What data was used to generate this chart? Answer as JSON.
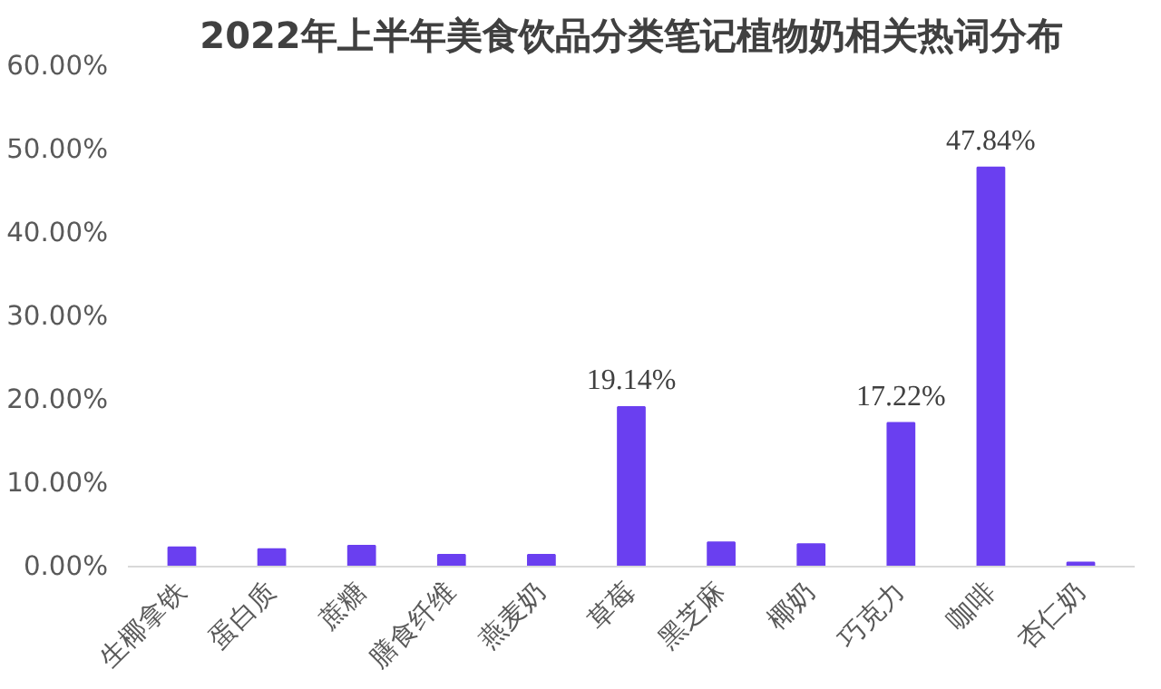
{
  "chart_data": {
    "type": "bar",
    "title": "2022年上半年美食饮品分类笔记植物奶相关热词分布",
    "categories": [
      "生椰拿铁",
      "蛋白质",
      "蔗糖",
      "膳食纤维",
      "燕麦奶",
      "草莓",
      "黑芝麻",
      "椰奶",
      "巧克力",
      "咖啡",
      "杏仁奶"
    ],
    "values": [
      2.3,
      2.1,
      2.5,
      1.4,
      1.4,
      19.14,
      2.9,
      2.7,
      17.22,
      47.84,
      0.5
    ],
    "value_labels": [
      null,
      null,
      null,
      null,
      null,
      "19.14%",
      null,
      null,
      "17.22%",
      "47.84%",
      null
    ],
    "color": "#6a3ff0",
    "ylim": [
      0,
      60
    ],
    "yticks": [
      {
        "value": 0,
        "label": "0.00%"
      },
      {
        "value": 10,
        "label": "10.00%"
      },
      {
        "value": 20,
        "label": "20.00%"
      },
      {
        "value": 30,
        "label": "30.00%"
      },
      {
        "value": 40,
        "label": "40.00%"
      },
      {
        "value": 50,
        "label": "50.00%"
      },
      {
        "value": 60,
        "label": "60.00%"
      }
    ],
    "grid": false
  }
}
